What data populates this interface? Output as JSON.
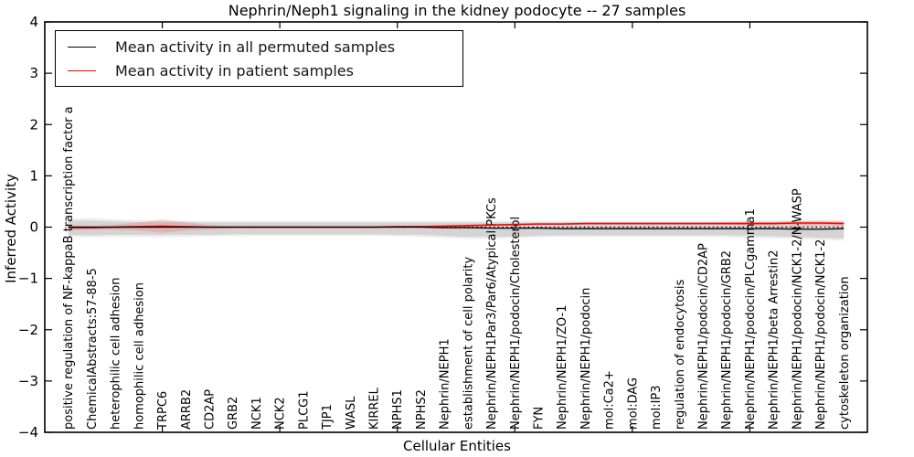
{
  "figure": {
    "title": "Nephrin/Neph1 signaling in the kidney podocyte -- 27 samples",
    "xlabel": "Cellular Entities",
    "ylabel": "Inferred Activity"
  },
  "legend": {
    "items": [
      {
        "label": "Mean activity in all permuted samples",
        "color": "#000000"
      },
      {
        "label": "Mean activity in patient samples",
        "color": "#ff0000"
      }
    ]
  },
  "chart_data": {
    "type": "line",
    "title": "Nephrin/Neph1 signaling in the kidney podocyte -- 27 samples",
    "xlabel": "Cellular Entities",
    "ylabel": "Inferred Activity",
    "ylim": [
      -4,
      4
    ],
    "yticks": [
      4,
      3,
      2,
      1,
      0,
      -1,
      -2,
      -3,
      -4
    ],
    "xlim": [
      0,
      35
    ],
    "numeric_xticks": [
      5,
      10,
      15,
      20,
      25,
      30
    ],
    "grid": false,
    "legend_position": "upper left",
    "categories": [
      "positive regulation of NF-kappaB transcription factor a",
      "ChemicalAbstracts:57-88-5",
      "heterophilic cell adhesion",
      "homophilic cell adhesion",
      "TRPC6",
      "ARRB2",
      "CD2AP",
      "GRB2",
      "NCK1",
      "NCK2",
      "PLCG1",
      "TJP1",
      "WASL",
      "KIRREL",
      "NPHS1",
      "NPHS2",
      "Nephrin/NEPH1",
      "establishment of cell polarity",
      "Nephrin/NEPH1Par3/Par6/Atypical PKCs",
      "Nephrin/NEPH1/podocin/Cholesterol",
      "FYN",
      "Nephrin/NEPH1/ZO-1",
      "Nephrin/NEPH1/podocin",
      "mol:Ca2+",
      "mol:DAG",
      "mol:IP3",
      "regulation of endocytosis",
      "Nephrin/NEPH1/podocin/CD2AP",
      "Nephrin/NEPH1/podocin/GRB2",
      "Nephrin/NEPH1/podocin/PLCgamma1",
      "Nephrin/NEPH1/beta Arrestin2",
      "Nephrin/NEPH1/podocin/NCK1-2/N-WASP",
      "Nephrin/NEPH1/podocin/NCK1-2",
      "cytoskeleton organization"
    ],
    "series": [
      {
        "name": "Mean activity in all permuted samples",
        "color": "#000000",
        "style": "solid",
        "width": 1.3,
        "values": [
          0,
          0,
          0,
          0,
          0,
          0,
          0,
          0,
          0,
          0,
          0,
          0,
          0,
          0,
          0,
          0,
          -0.01,
          -0.01,
          -0.02,
          -0.02,
          -0.02,
          -0.03,
          -0.03,
          -0.03,
          -0.03,
          -0.03,
          -0.03,
          -0.03,
          -0.03,
          -0.03,
          -0.03,
          -0.04,
          -0.04,
          -0.03
        ]
      },
      {
        "name": "Mean activity in patient samples",
        "color": "#ff0000",
        "style": "solid",
        "width": 1.6,
        "values": [
          -0.01,
          -0.01,
          0,
          0.01,
          0.02,
          0.01,
          0,
          0,
          0,
          0,
          0,
          0,
          0,
          0,
          0.01,
          0.01,
          0.02,
          0.03,
          0.04,
          0.05,
          0.06,
          0.06,
          0.07,
          0.07,
          0.07,
          0.07,
          0.07,
          0.07,
          0.07,
          0.07,
          0.07,
          0.08,
          0.08,
          0.07
        ]
      },
      {
        "name": "zero-baseline",
        "color": "#000000",
        "style": "dotted",
        "width": 1.2,
        "values": [
          0,
          0,
          0,
          0,
          0,
          0,
          0,
          0,
          0,
          0,
          0,
          0,
          0,
          0,
          0,
          0,
          0,
          0,
          0,
          0,
          0,
          0,
          0,
          0,
          0,
          0,
          0,
          0,
          0,
          0,
          0,
          0,
          0,
          0
        ]
      }
    ],
    "bands": [
      {
        "name": "permuted-range-outer",
        "color": "rgba(0,0,0,0.07)",
        "upper": [
          0.16,
          0.18,
          0.15,
          0.14,
          0.13,
          0.13,
          0.12,
          0.12,
          0.12,
          0.12,
          0.12,
          0.12,
          0.12,
          0.12,
          0.12,
          0.12,
          0.12,
          0.12,
          0.12,
          0.12,
          0.12,
          0.12,
          0.12,
          0.12,
          0.12,
          0.12,
          0.12,
          0.12,
          0.13,
          0.13,
          0.13,
          0.14,
          0.14,
          0.14
        ],
        "lower": [
          -0.19,
          -0.2,
          -0.19,
          -0.19,
          -0.2,
          -0.19,
          -0.18,
          -0.18,
          -0.17,
          -0.17,
          -0.17,
          -0.17,
          -0.17,
          -0.17,
          -0.18,
          -0.19,
          -0.21,
          -0.23,
          -0.23,
          -0.22,
          -0.2,
          -0.19,
          -0.19,
          -0.19,
          -0.19,
          -0.19,
          -0.19,
          -0.19,
          -0.2,
          -0.21,
          -0.22,
          -0.23,
          -0.25,
          -0.26
        ]
      },
      {
        "name": "permuted-range-inner",
        "color": "rgba(0,0,0,0.10)",
        "upper": [
          0.12,
          0.13,
          0.11,
          0.1,
          0.1,
          0.1,
          0.09,
          0.09,
          0.09,
          0.09,
          0.09,
          0.09,
          0.09,
          0.09,
          0.09,
          0.09,
          0.09,
          0.09,
          0.09,
          0.09,
          0.09,
          0.09,
          0.09,
          0.09,
          0.09,
          0.09,
          0.09,
          0.09,
          0.1,
          0.1,
          0.1,
          0.1,
          0.1,
          0.1
        ],
        "lower": [
          -0.15,
          -0.16,
          -0.15,
          -0.15,
          -0.15,
          -0.15,
          -0.15,
          -0.14,
          -0.14,
          -0.14,
          -0.14,
          -0.14,
          -0.14,
          -0.14,
          -0.15,
          -0.15,
          -0.17,
          -0.19,
          -0.19,
          -0.18,
          -0.17,
          -0.16,
          -0.16,
          -0.16,
          -0.16,
          -0.16,
          -0.16,
          -0.16,
          -0.16,
          -0.17,
          -0.18,
          -0.19,
          -0.21,
          -0.22
        ]
      },
      {
        "name": "patient-range",
        "color": "rgba(255,0,0,0.14)",
        "upper": [
          0.04,
          0.03,
          0.05,
          0.09,
          0.15,
          0.09,
          0.04,
          0.02,
          0.02,
          0.02,
          0.02,
          0.02,
          0.02,
          0.02,
          0.03,
          0.03,
          0.04,
          0.05,
          0.06,
          0.07,
          0.08,
          0.08,
          0.09,
          0.09,
          0.09,
          0.09,
          0.09,
          0.09,
          0.09,
          0.1,
          0.1,
          0.12,
          0.12,
          0.11
        ],
        "lower": [
          -0.06,
          -0.05,
          -0.05,
          -0.07,
          -0.11,
          -0.07,
          -0.04,
          -0.02,
          -0.02,
          -0.02,
          -0.02,
          -0.02,
          -0.02,
          -0.02,
          -0.01,
          -0.01,
          0.0,
          0.01,
          0.02,
          0.03,
          0.04,
          0.04,
          0.05,
          0.05,
          0.05,
          0.05,
          0.05,
          0.05,
          0.05,
          0.04,
          0.04,
          0.04,
          0.04,
          0.03
        ]
      }
    ]
  }
}
